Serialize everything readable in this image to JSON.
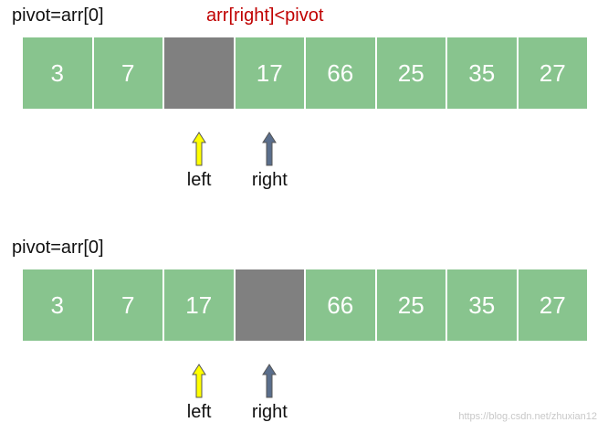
{
  "colors": {
    "cell_fill": "#88c48e",
    "hole_fill": "#808080",
    "cell_text": "#ffffff",
    "left_arrow": "#ffff00",
    "right_arrow": "#5a6e8c",
    "condition_text": "#c00000"
  },
  "steps": [
    {
      "pivot_label": "pivot=arr[0]",
      "condition_label": "arr[right]<pivot",
      "cells": [
        {
          "value": "3",
          "hole": false
        },
        {
          "value": "7",
          "hole": false
        },
        {
          "value": "",
          "hole": true
        },
        {
          "value": "17",
          "hole": false
        },
        {
          "value": "66",
          "hole": false
        },
        {
          "value": "25",
          "hole": false
        },
        {
          "value": "35",
          "hole": false
        },
        {
          "value": "27",
          "hole": false
        }
      ],
      "pointers": [
        {
          "label": "left",
          "index": 2,
          "icon": "up-arrow-icon",
          "color": "#ffff00"
        },
        {
          "label": "right",
          "index": 3,
          "icon": "up-arrow-icon",
          "color": "#5a6e8c"
        }
      ]
    },
    {
      "pivot_label": "pivot=arr[0]",
      "condition_label": "",
      "cells": [
        {
          "value": "3",
          "hole": false
        },
        {
          "value": "7",
          "hole": false
        },
        {
          "value": "17",
          "hole": false
        },
        {
          "value": "",
          "hole": true
        },
        {
          "value": "66",
          "hole": false
        },
        {
          "value": "25",
          "hole": false
        },
        {
          "value": "35",
          "hole": false
        },
        {
          "value": "27",
          "hole": false
        }
      ],
      "pointers": [
        {
          "label": "left",
          "index": 2,
          "icon": "up-arrow-icon",
          "color": "#ffff00"
        },
        {
          "label": "right",
          "index": 3,
          "icon": "up-arrow-icon",
          "color": "#5a6e8c"
        }
      ]
    }
  ],
  "watermark": "https://blog.csdn.net/zhuxian12"
}
